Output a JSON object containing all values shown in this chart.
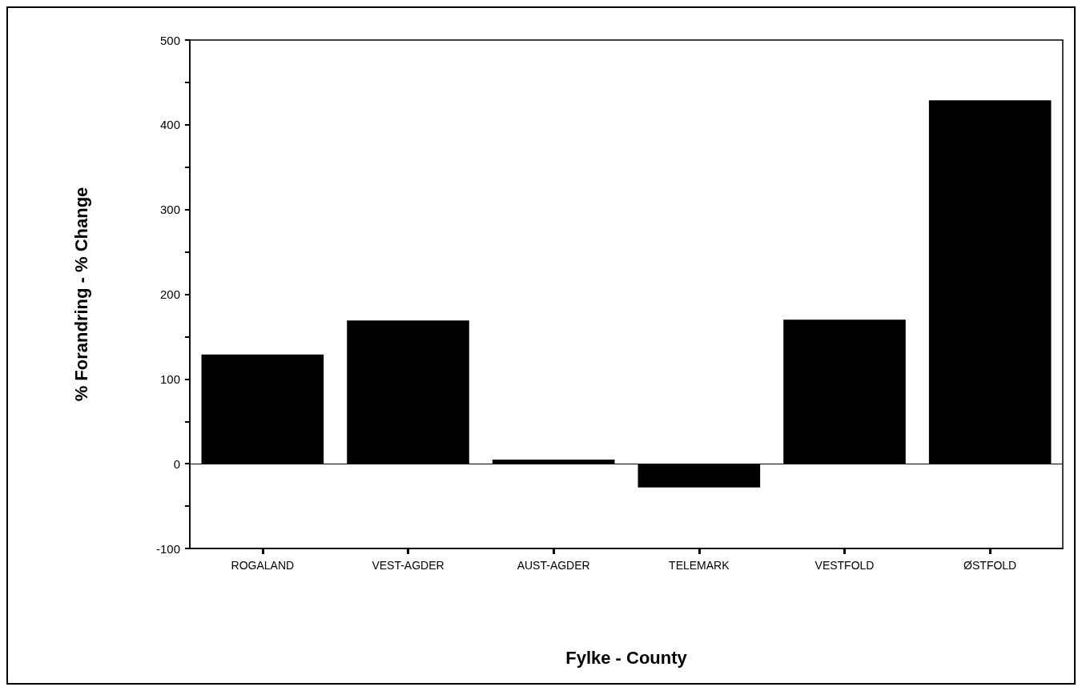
{
  "chart_data": {
    "type": "bar",
    "xlabel": "Fylke - County",
    "ylabel": "% Forandring - % Change",
    "categories": [
      "ROGALAND",
      "VEST-AGDER",
      "AUST-AGDER",
      "TELEMARK",
      "VESTFOLD",
      "ØSTFOLD"
    ],
    "values": [
      129,
      169,
      5,
      -28,
      170,
      429
    ],
    "color": "#000000",
    "ylim": [
      -100,
      500
    ],
    "yticks": [
      -100,
      {
        "value": -50,
        "label": null
      },
      0,
      {
        "value": 50,
        "label": null
      },
      100,
      {
        "value": 150,
        "label": null
      },
      200,
      {
        "value": 250,
        "label": null
      },
      300,
      {
        "value": 350,
        "label": null
      },
      400,
      {
        "value": 450,
        "label": null
      },
      500
    ],
    "ref_lines": [
      {
        "axis": "y",
        "value": 0,
        "color": "#000000",
        "line_style": "solid"
      }
    ],
    "grid": false
  }
}
